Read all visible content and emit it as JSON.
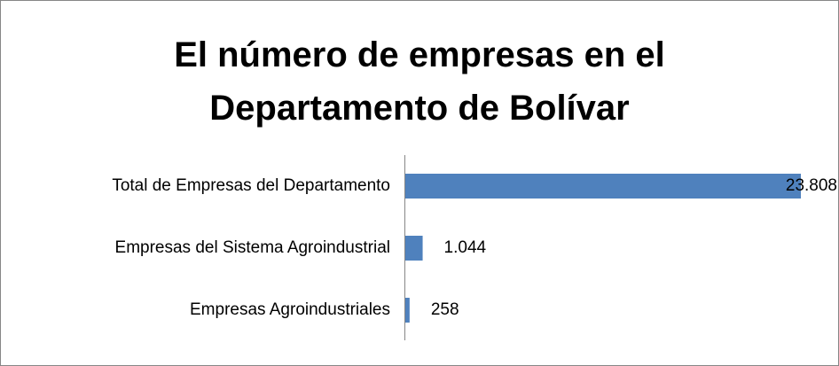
{
  "chart_data": {
    "type": "bar",
    "orientation": "horizontal",
    "title": "El número de empresas en el Departamento de Bolívar",
    "categories": [
      "Total de Empresas del Departamento",
      "Empresas del Sistema Agroindustrial",
      "Empresas Agroindustriales"
    ],
    "values": [
      23808,
      1044,
      258
    ],
    "value_labels": [
      "23.808",
      "1.044",
      "258"
    ],
    "color": "#4f81bd"
  }
}
